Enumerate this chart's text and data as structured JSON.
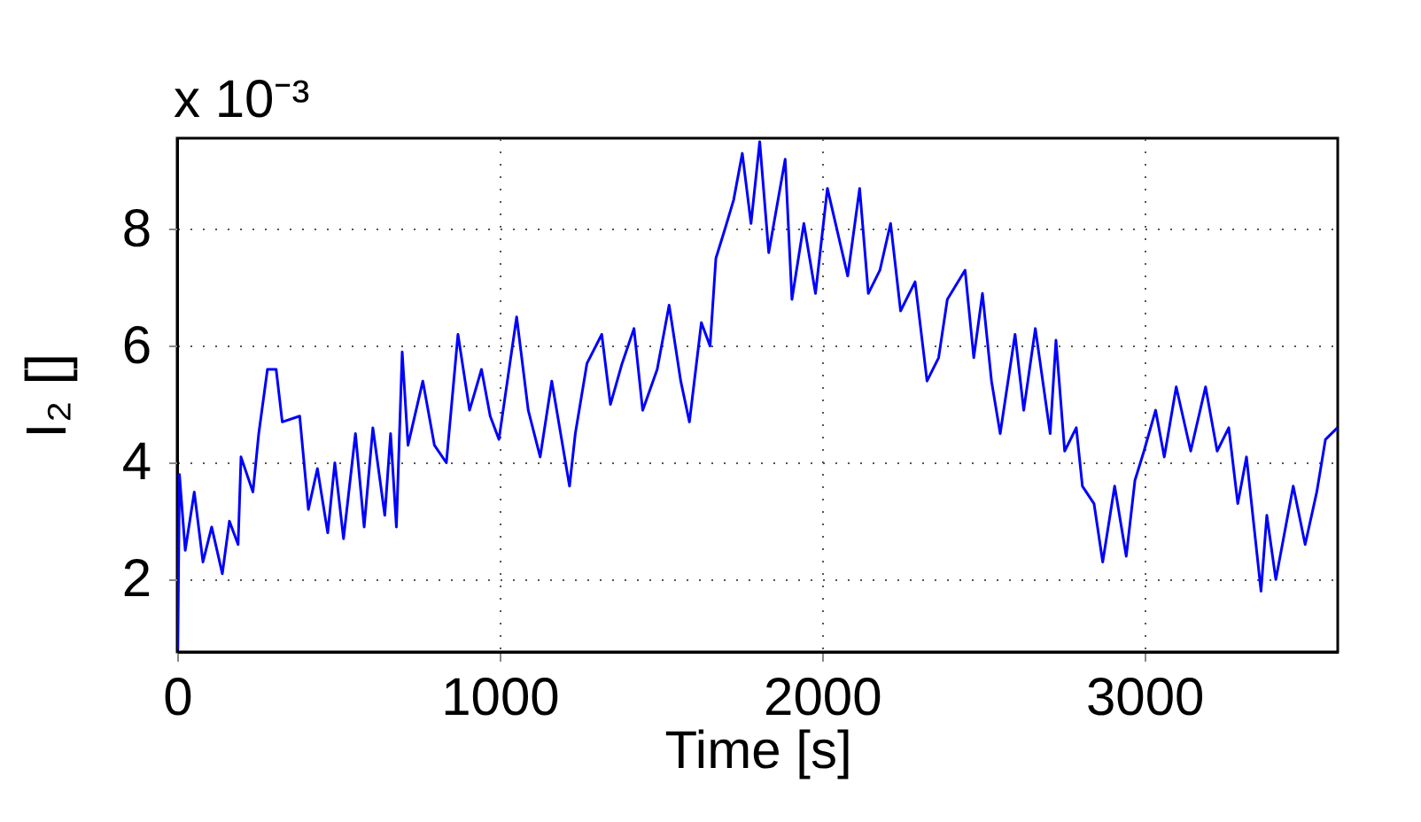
{
  "chart_data": {
    "type": "line",
    "xlabel": "Time [s]",
    "ylabel": "I₂ []",
    "annotations": [
      "x 10⁻³"
    ],
    "xlim": [
      0,
      3600
    ],
    "xticks": [
      0,
      1000,
      2000,
      3000
    ],
    "ylim": [
      0.76,
      9.56
    ],
    "yticks": [
      2,
      4,
      6,
      8
    ],
    "grid": true,
    "series": [
      {
        "color": "#0000ff",
        "x": [
          2,
          7,
          25,
          53,
          80,
          107,
          140,
          162,
          189,
          198,
          235,
          253,
          280,
          307,
          326,
          380,
          407,
          435,
          467,
          489,
          516,
          553,
          580,
          607,
          644,
          662,
          680,
          698,
          716,
          762,
          798,
          835,
          871,
          907,
          944,
          971,
          998,
          1053,
          1089,
          1126,
          1162,
          1217,
          1235,
          1271,
          1317,
          1344,
          1380,
          1417,
          1444,
          1489,
          1526,
          1562,
          1589,
          1626,
          1653,
          1671,
          1699,
          1726,
          1753,
          1780,
          1807,
          1835,
          1886,
          1907,
          1944,
          1980,
          2017,
          2080,
          2117,
          2144,
          2180,
          2213,
          2244,
          2289,
          2326,
          2362,
          2389,
          2444,
          2471,
          2498,
          2526,
          2553,
          2599,
          2626,
          2662,
          2708,
          2726,
          2753,
          2789,
          2808,
          2844,
          2871,
          2908,
          2944,
          2971,
          2999,
          3035,
          3062,
          3099,
          3144,
          3190,
          3226,
          3262,
          3290,
          3317,
          3362,
          3380,
          3408,
          3435,
          3462,
          3499,
          3535,
          3562,
          3599
        ],
        "values": [
          0.8,
          3.8,
          2.5,
          3.5,
          2.3,
          2.9,
          2.1,
          3.0,
          2.6,
          4.1,
          3.5,
          4.5,
          5.6,
          5.6,
          4.7,
          4.8,
          3.2,
          3.9,
          2.8,
          4.0,
          2.7,
          4.5,
          2.9,
          4.6,
          3.1,
          4.5,
          2.9,
          5.9,
          4.3,
          5.4,
          4.3,
          4.0,
          6.2,
          4.9,
          5.6,
          4.8,
          4.4,
          6.5,
          4.9,
          4.1,
          5.4,
          3.6,
          4.5,
          5.7,
          6.2,
          5.0,
          5.7,
          6.3,
          4.9,
          5.6,
          6.7,
          5.4,
          4.7,
          6.4,
          6.0,
          7.5,
          8.0,
          8.5,
          9.3,
          8.1,
          9.5,
          7.6,
          9.2,
          6.8,
          8.1,
          6.9,
          8.7,
          7.2,
          8.7,
          6.9,
          7.3,
          8.1,
          6.6,
          7.1,
          5.4,
          5.8,
          6.8,
          7.3,
          5.8,
          6.9,
          5.4,
          4.5,
          6.2,
          4.9,
          6.3,
          4.5,
          6.1,
          4.2,
          4.6,
          3.6,
          3.3,
          2.3,
          3.6,
          2.4,
          3.7,
          4.2,
          4.9,
          4.1,
          5.3,
          4.2,
          5.3,
          4.2,
          4.6,
          3.3,
          4.1,
          1.8,
          3.1,
          2.0,
          2.8,
          3.6,
          2.6,
          3.5,
          4.4,
          4.6
        ]
      }
    ]
  }
}
